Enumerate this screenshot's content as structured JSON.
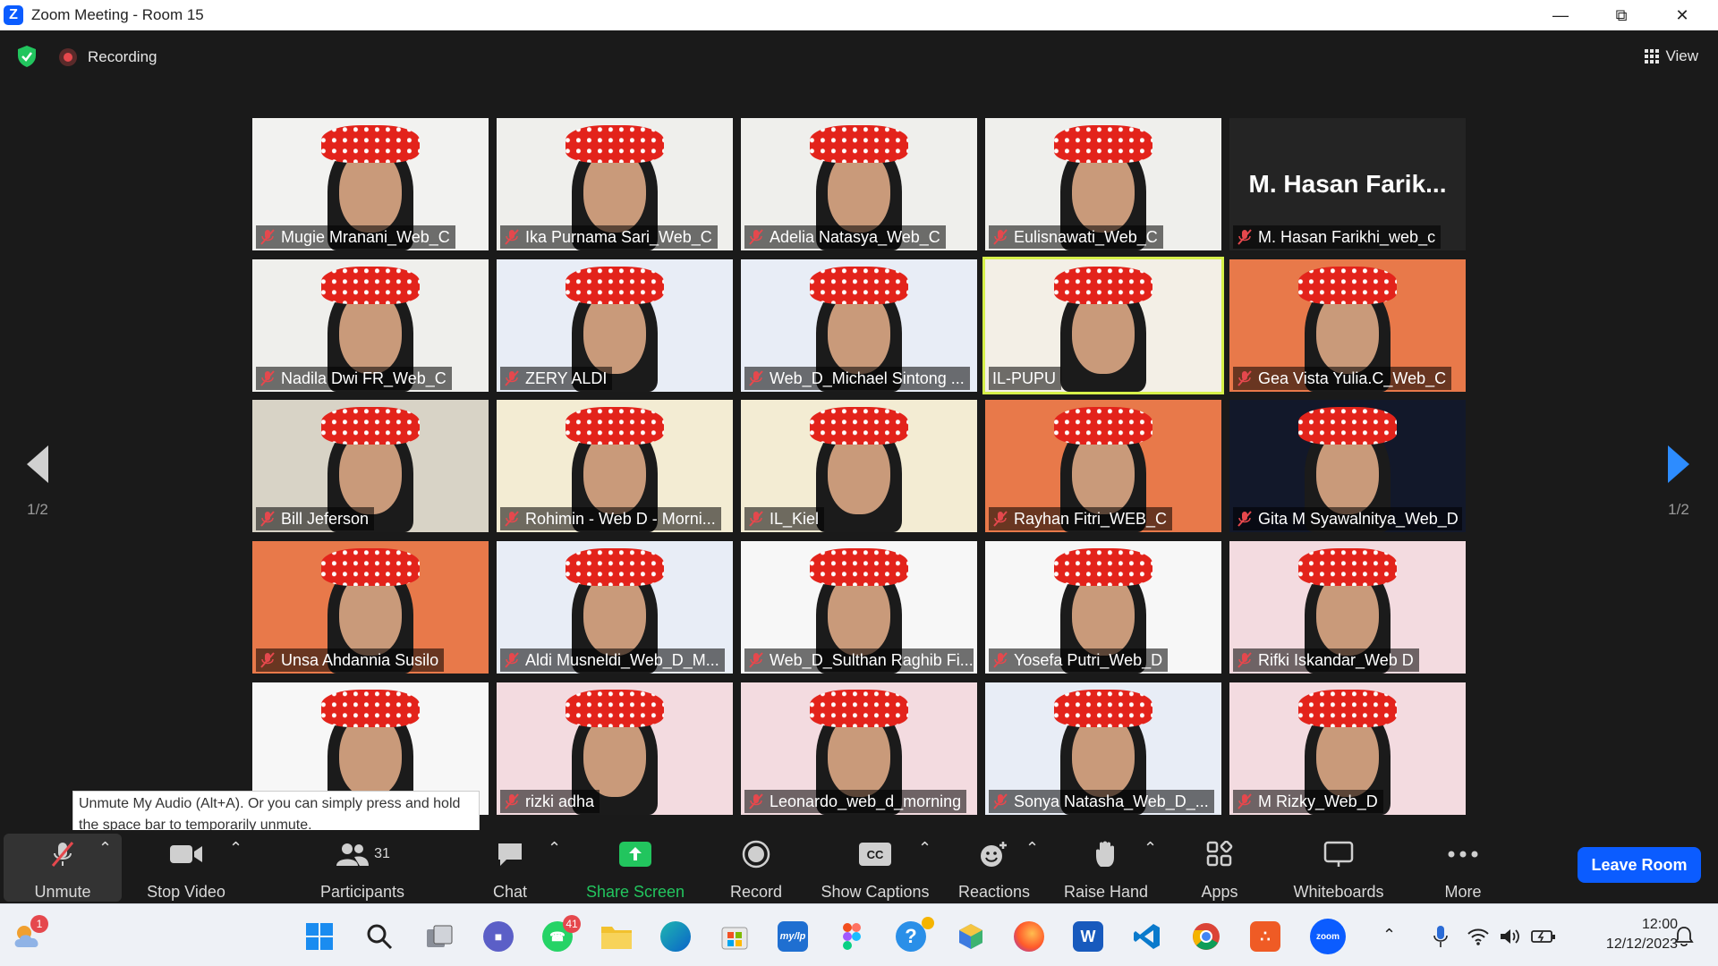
{
  "window": {
    "title": "Zoom Meeting - Room 15",
    "logo_letter": "Z"
  },
  "topbar": {
    "recording_label": "Recording",
    "view_label": "View"
  },
  "pager": {
    "left_label": "1/2",
    "right_label": "1/2"
  },
  "participants": [
    {
      "name": "Mugie Mranani_Web_C",
      "muted": true,
      "video": true,
      "bg": "#f2f2f0"
    },
    {
      "name": "Ika Purnama Sari_Web_C",
      "muted": true,
      "video": true,
      "bg": "#efefec"
    },
    {
      "name": "Adelia Natasya_Web_C",
      "muted": true,
      "video": true,
      "bg": "#efefec"
    },
    {
      "name": "Eulisnawati_Web_C",
      "muted": true,
      "video": true,
      "bg": "#efefec"
    },
    {
      "name": "M. Hasan Farikhi_web_c",
      "display_name": "M. Hasan Farik...",
      "muted": true,
      "video": false,
      "bg": "#242424"
    },
    {
      "name": "Nadila Dwi FR_Web_C",
      "muted": true,
      "video": true,
      "bg": "#efefec"
    },
    {
      "name": "ZERY ALDI",
      "muted": true,
      "video": true,
      "bg": "#e8edf6"
    },
    {
      "name": "Web_D_Michael Sintong ...",
      "muted": true,
      "video": true,
      "bg": "#e8edf6"
    },
    {
      "name": "IL-PUPU",
      "muted": false,
      "video": true,
      "bg": "#f3efe6",
      "active": true
    },
    {
      "name": "Gea Vista Yulia.C_Web_C",
      "muted": true,
      "video": true,
      "bg": "#e8794a"
    },
    {
      "name": "Bill Jeferson",
      "muted": true,
      "video": true,
      "bg": "#d8d3c6"
    },
    {
      "name": "Rohimin - Web D - Morni...",
      "muted": true,
      "video": true,
      "bg": "#f3ecd3"
    },
    {
      "name": "IL_Kiel",
      "muted": true,
      "video": true,
      "bg": "#f3ecd3"
    },
    {
      "name": "Rayhan Fitri_WEB_C",
      "muted": true,
      "video": true,
      "bg": "#e8794a"
    },
    {
      "name": "Gita M Syawalnitya_Web_D",
      "muted": true,
      "video": true,
      "bg": "#12182a"
    },
    {
      "name": "Unsa Ahdannia Susilo",
      "muted": true,
      "video": true,
      "bg": "#e8794a"
    },
    {
      "name": "Aldi Musneldi_Web_D_M...",
      "muted": true,
      "video": true,
      "bg": "#e8edf6"
    },
    {
      "name": "Web_D_Sulthan Raghib Fi...",
      "muted": true,
      "video": true,
      "bg": "#f7f7f7"
    },
    {
      "name": "Yosefa Putri_Web_D",
      "muted": true,
      "video": true,
      "bg": "#f7f7f7"
    },
    {
      "name": "Rifki Iskandar_Web D",
      "muted": true,
      "video": true,
      "bg": "#f3dbe0"
    },
    {
      "name": "",
      "muted": true,
      "video": true,
      "bg": "#f7f7f7"
    },
    {
      "name": "rizki adha",
      "muted": true,
      "video": true,
      "bg": "#f3dbe0"
    },
    {
      "name": "Leonardo_web_d_morning",
      "muted": true,
      "video": true,
      "bg": "#f3dbe0"
    },
    {
      "name": "Sonya Natasha_Web_D_...",
      "muted": true,
      "video": true,
      "bg": "#e8edf6"
    },
    {
      "name": "M Rizky_Web_D",
      "muted": true,
      "video": true,
      "bg": "#f3dbe0"
    }
  ],
  "tooltip": {
    "text": "Unmute My Audio (Alt+A). Or you can simply press and hold the space bar to temporarily unmute."
  },
  "toolbar": {
    "unmute": "Unmute",
    "stop_video": "Stop Video",
    "participants": "Participants",
    "participants_count": "31",
    "chat": "Chat",
    "share_screen": "Share Screen",
    "record": "Record",
    "show_captions": "Show Captions",
    "captions_icon": "CC",
    "reactions": "Reactions",
    "raise_hand": "Raise Hand",
    "apps": "Apps",
    "whiteboards": "Whiteboards",
    "more": "More",
    "leave_room": "Leave Room"
  },
  "colors": {
    "accent": "#0b5cff",
    "share_green": "#22c55e",
    "active_border": "#d6f04a",
    "muted_red": "#e5484d"
  },
  "taskbar": {
    "weather_badge": "1",
    "whatsapp_badge": "41",
    "mylp_label": "my/lp",
    "word_label": "W",
    "zoom_label": "zoom",
    "time": "12:00",
    "date": "12/12/2023"
  }
}
